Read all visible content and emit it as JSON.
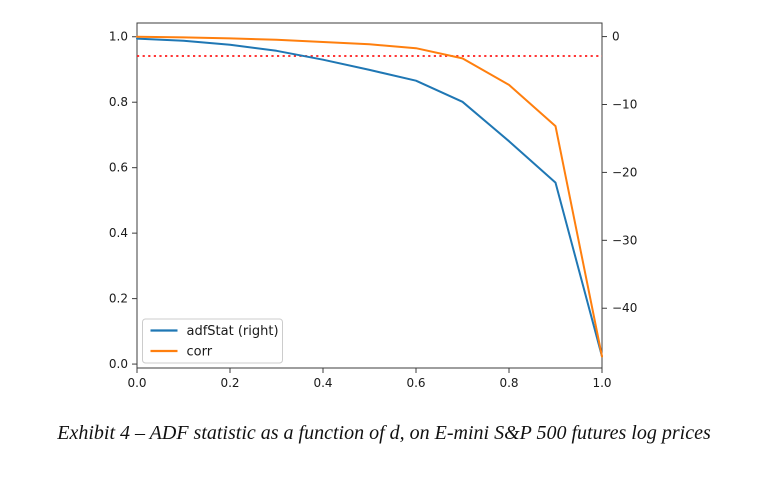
{
  "caption": "Exhibit 4 – ADF statistic as a function of d, on E-mini S&P 500 futures log prices",
  "chart_data": {
    "type": "line",
    "x": [
      0.0,
      0.1,
      0.2,
      0.3,
      0.4,
      0.5,
      0.6,
      0.7,
      0.8,
      0.9,
      1.0
    ],
    "series": [
      {
        "name": "adfStat (right)",
        "axis": "right",
        "color": "#1f77b4",
        "values": [
          -0.3,
          -0.6,
          -1.2,
          -2.1,
          -3.4,
          -4.9,
          -6.5,
          -9.6,
          -15.4,
          -21.5,
          -47.1
        ]
      },
      {
        "name": "corr",
        "axis": "left",
        "color": "#ff7f0e",
        "values": [
          1.0,
          0.998,
          0.995,
          0.991,
          0.984,
          0.977,
          0.965,
          0.934,
          0.853,
          0.727,
          0.023
        ]
      }
    ],
    "threshold_line": {
      "axis": "right",
      "value": -2.86,
      "color": "#ff1a1a",
      "style": "dotted"
    },
    "x_axis": {
      "lim": [
        0.0,
        1.0
      ],
      "ticks": [
        {
          "v": 0.0,
          "label": "0.0"
        },
        {
          "v": 0.2,
          "label": "0.2"
        },
        {
          "v": 0.4,
          "label": "0.4"
        },
        {
          "v": 0.6,
          "label": "0.6"
        },
        {
          "v": 0.8,
          "label": "0.8"
        },
        {
          "v": 1.0,
          "label": "1.0"
        }
      ]
    },
    "left_axis": {
      "lim": [
        -0.012,
        1.042
      ],
      "ticks": [
        {
          "v": 1.0,
          "label": "1.0"
        },
        {
          "v": 0.8,
          "label": "0.8"
        },
        {
          "v": 0.6,
          "label": "0.6"
        },
        {
          "v": 0.4,
          "label": "0.4"
        },
        {
          "v": 0.2,
          "label": "0.2"
        },
        {
          "v": 0.0,
          "label": "0.0"
        }
      ]
    },
    "right_axis": {
      "lim": [
        -48.8,
        2.0
      ],
      "ticks": [
        {
          "v": 0,
          "label": "0"
        },
        {
          "v": -10,
          "label": "−10"
        },
        {
          "v": -20,
          "label": "−20"
        },
        {
          "v": -30,
          "label": "−30"
        },
        {
          "v": -40,
          "label": "−40"
        }
      ]
    },
    "legend": {
      "position": "lower left",
      "entries": [
        "adfStat (right)",
        "corr"
      ]
    },
    "grid": false,
    "title": ""
  }
}
